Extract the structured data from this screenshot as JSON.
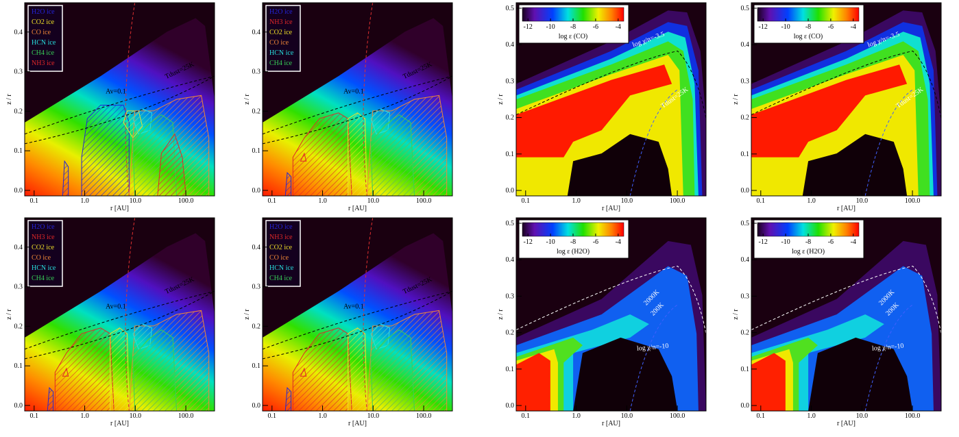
{
  "chart_data": [
    {
      "type": "ice-map",
      "xlabel": "r [AU]",
      "ylabel": "z / r",
      "xscale": "log",
      "xlim": [
        0.065,
        370
      ],
      "xticks": [
        {
          "value": 0.1,
          "label": "0.1"
        },
        {
          "value": 1,
          "label": "1.0"
        },
        {
          "value": 10,
          "label": "10.0"
        },
        {
          "value": 100,
          "label": "100.0"
        }
      ],
      "ylim": [
        -0.014,
        0.474
      ],
      "yticks": [
        {
          "value": 0,
          "label": "0.0"
        },
        {
          "value": 0.1,
          "label": "0.1"
        },
        {
          "value": 0.2,
          "label": "0.2"
        },
        {
          "value": 0.3,
          "label": "0.3"
        },
        {
          "value": 0.4,
          "label": "0.4"
        }
      ],
      "legend": [
        {
          "name": "H2O ice",
          "color": "#2424d8"
        },
        {
          "name": "CO2 ice",
          "color": "#f0e028"
        },
        {
          "name": "CO ice",
          "color": "#f08838"
        },
        {
          "name": "HCN ice",
          "color": "#28e0e0"
        },
        {
          "name": "CH4 ice",
          "color": "#38d058"
        },
        {
          "name": "NH3 ice",
          "color": "#e02828"
        }
      ],
      "annotations": [
        "Av=0.1",
        "Tdust=25K"
      ]
    },
    {
      "type": "ice-map",
      "xlabel": "r [AU]",
      "ylabel": "z / r",
      "xscale": "log",
      "xlim": [
        0.065,
        370
      ],
      "xticks": [
        {
          "value": 0.1,
          "label": "0.1"
        },
        {
          "value": 1,
          "label": "1.0"
        },
        {
          "value": 10,
          "label": "10.0"
        },
        {
          "value": 100,
          "label": "100.0"
        }
      ],
      "ylim": [
        -0.014,
        0.474
      ],
      "yticks": [
        {
          "value": 0,
          "label": "0.0"
        },
        {
          "value": 0.1,
          "label": "0.1"
        },
        {
          "value": 0.2,
          "label": "0.2"
        },
        {
          "value": 0.3,
          "label": "0.3"
        },
        {
          "value": 0.4,
          "label": "0.4"
        }
      ],
      "legend": [
        {
          "name": "H2O ice",
          "color": "#2424d8"
        },
        {
          "name": "NH3 ice",
          "color": "#e02828"
        },
        {
          "name": "CO2 ice",
          "color": "#f0e028"
        },
        {
          "name": "CO ice",
          "color": "#f08838"
        },
        {
          "name": "HCN ice",
          "color": "#28e0e0"
        },
        {
          "name": "CH4 ice",
          "color": "#38d058"
        }
      ],
      "annotations": [
        "Av=0.1",
        "Tdust=25K"
      ]
    },
    {
      "type": "abundance-map",
      "species": "CO",
      "xlabel": "r [AU]",
      "ylabel": "z / r",
      "xscale": "log",
      "xlim": [
        0.065,
        370
      ],
      "xticks": [
        {
          "value": 0.1,
          "label": "0.1"
        },
        {
          "value": 1,
          "label": "1.0"
        },
        {
          "value": 10,
          "label": "10.0"
        },
        {
          "value": 100,
          "label": "100.0"
        }
      ],
      "ylim": [
        -0.015,
        0.515
      ],
      "yticks": [
        {
          "value": 0,
          "label": "0.0"
        },
        {
          "value": 0.1,
          "label": "0.1"
        },
        {
          "value": 0.2,
          "label": "0.2"
        },
        {
          "value": 0.3,
          "label": "0.3"
        },
        {
          "value": 0.4,
          "label": "0.4"
        },
        {
          "value": 0.5,
          "label": "0.5"
        }
      ],
      "colorbar": {
        "label": "log ε (CO)",
        "lim": [
          -12.5,
          -3.5
        ],
        "ticks": [
          -12,
          -10,
          -8,
          -6,
          -4
        ]
      },
      "annotations": [
        "log χ/n=-3.5",
        "Tdust=25K"
      ]
    },
    {
      "type": "abundance-map",
      "species": "CO",
      "xlabel": "r [AU]",
      "ylabel": "z / r",
      "xscale": "log",
      "xlim": [
        0.065,
        370
      ],
      "xticks": [
        {
          "value": 0.1,
          "label": "0.1"
        },
        {
          "value": 1,
          "label": "1.0"
        },
        {
          "value": 10,
          "label": "10.0"
        },
        {
          "value": 100,
          "label": "100.0"
        }
      ],
      "ylim": [
        -0.015,
        0.515
      ],
      "yticks": [
        {
          "value": 0,
          "label": "0.0"
        },
        {
          "value": 0.1,
          "label": "0.1"
        },
        {
          "value": 0.2,
          "label": "0.2"
        },
        {
          "value": 0.3,
          "label": "0.3"
        },
        {
          "value": 0.4,
          "label": "0.4"
        },
        {
          "value": 0.5,
          "label": "0.5"
        }
      ],
      "colorbar": {
        "label": "log ε (CO)",
        "lim": [
          -12.5,
          -3.5
        ],
        "ticks": [
          -12,
          -10,
          -8,
          -6,
          -4
        ]
      },
      "annotations": [
        "log χ/n=-3.5",
        "Tdust=25K"
      ]
    },
    {
      "type": "ice-map",
      "xlabel": "r [AU]",
      "ylabel": "z / r",
      "xscale": "log",
      "xlim": [
        0.065,
        370
      ],
      "xticks": [
        {
          "value": 0.1,
          "label": "0.1"
        },
        {
          "value": 1,
          "label": "1.0"
        },
        {
          "value": 10,
          "label": "10.0"
        },
        {
          "value": 100,
          "label": "100.0"
        }
      ],
      "ylim": [
        -0.014,
        0.474
      ],
      "yticks": [
        {
          "value": 0,
          "label": "0.0"
        },
        {
          "value": 0.1,
          "label": "0.1"
        },
        {
          "value": 0.2,
          "label": "0.2"
        },
        {
          "value": 0.3,
          "label": "0.3"
        },
        {
          "value": 0.4,
          "label": "0.4"
        }
      ],
      "legend": [
        {
          "name": "H2O ice",
          "color": "#2424d8"
        },
        {
          "name": "NH3 ice",
          "color": "#e02828"
        },
        {
          "name": "CO2 ice",
          "color": "#f0e028"
        },
        {
          "name": "CO ice",
          "color": "#f08838"
        },
        {
          "name": "HCN ice",
          "color": "#28e0e0"
        },
        {
          "name": "CH4 ice",
          "color": "#38d058"
        }
      ],
      "annotations": [
        "Av=0.1",
        "Tdust=25K"
      ]
    },
    {
      "type": "ice-map",
      "xlabel": "r [AU]",
      "ylabel": "z / r",
      "xscale": "log",
      "xlim": [
        0.065,
        370
      ],
      "xticks": [
        {
          "value": 0.1,
          "label": "0.1"
        },
        {
          "value": 1,
          "label": "1.0"
        },
        {
          "value": 10,
          "label": "10.0"
        },
        {
          "value": 100,
          "label": "100.0"
        }
      ],
      "ylim": [
        -0.014,
        0.474
      ],
      "yticks": [
        {
          "value": 0,
          "label": "0.0"
        },
        {
          "value": 0.1,
          "label": "0.1"
        },
        {
          "value": 0.2,
          "label": "0.2"
        },
        {
          "value": 0.3,
          "label": "0.3"
        },
        {
          "value": 0.4,
          "label": "0.4"
        }
      ],
      "legend": [
        {
          "name": "H2O ice",
          "color": "#2424d8"
        },
        {
          "name": "NH3 ice",
          "color": "#e02828"
        },
        {
          "name": "CO2 ice",
          "color": "#f0e028"
        },
        {
          "name": "CO ice",
          "color": "#f08838"
        },
        {
          "name": "HCN ice",
          "color": "#28e0e0"
        },
        {
          "name": "CH4 ice",
          "color": "#38d058"
        }
      ],
      "annotations": [
        "Av=0.1",
        "Tdust=25K"
      ]
    },
    {
      "type": "abundance-map",
      "species": "H2O",
      "xlabel": "r [AU]",
      "ylabel": "z / r",
      "xscale": "log",
      "xlim": [
        0.065,
        370
      ],
      "xticks": [
        {
          "value": 0.1,
          "label": "0.1"
        },
        {
          "value": 1,
          "label": "1.0"
        },
        {
          "value": 10,
          "label": "10.0"
        },
        {
          "value": 100,
          "label": "100.0"
        }
      ],
      "ylim": [
        -0.015,
        0.515
      ],
      "yticks": [
        {
          "value": 0,
          "label": "0.0"
        },
        {
          "value": 0.1,
          "label": "0.1"
        },
        {
          "value": 0.2,
          "label": "0.2"
        },
        {
          "value": 0.3,
          "label": "0.3"
        },
        {
          "value": 0.4,
          "label": "0.4"
        },
        {
          "value": 0.5,
          "label": "0.5"
        }
      ],
      "colorbar": {
        "label": "log ε (H2O)",
        "lim": [
          -12.5,
          -3.5
        ],
        "ticks": [
          -12,
          -10,
          -8,
          -6,
          -4
        ]
      },
      "annotations": [
        "2000K",
        "200K",
        "log χ/n=-10"
      ]
    },
    {
      "type": "abundance-map",
      "species": "H2O",
      "xlabel": "r [AU]",
      "ylabel": "z / r",
      "xscale": "log",
      "xlim": [
        0.065,
        370
      ],
      "xticks": [
        {
          "value": 0.1,
          "label": "0.1"
        },
        {
          "value": 1,
          "label": "1.0"
        },
        {
          "value": 10,
          "label": "10.0"
        },
        {
          "value": 100,
          "label": "100.0"
        }
      ],
      "ylim": [
        -0.015,
        0.515
      ],
      "yticks": [
        {
          "value": 0,
          "label": "0.0"
        },
        {
          "value": 0.1,
          "label": "0.1"
        },
        {
          "value": 0.2,
          "label": "0.2"
        },
        {
          "value": 0.3,
          "label": "0.3"
        },
        {
          "value": 0.4,
          "label": "0.4"
        },
        {
          "value": 0.5,
          "label": "0.5"
        }
      ],
      "colorbar": {
        "label": "log ε (H2O)",
        "lim": [
          -12.5,
          -3.5
        ],
        "ticks": [
          -12,
          -10,
          -8,
          -6,
          -4
        ]
      },
      "annotations": [
        "2000K",
        "200K",
        "log χ/n=-10"
      ]
    }
  ]
}
